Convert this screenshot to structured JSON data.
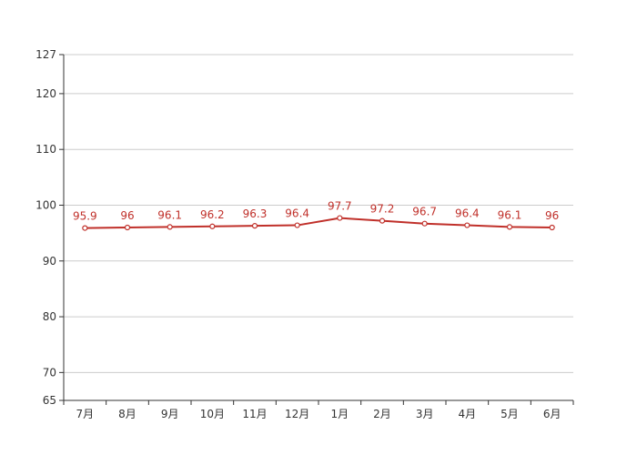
{
  "chart_data": {
    "type": "line",
    "title": "",
    "xlabel": "",
    "ylabel": "",
    "categories": [
      "7月",
      "8月",
      "9月",
      "10月",
      "11月",
      "12月",
      "1月",
      "2月",
      "3月",
      "4月",
      "5月",
      "6月"
    ],
    "series": [
      {
        "values": [
          95.9,
          96,
          96.1,
          96.2,
          96.3,
          96.4,
          97.7,
          97.2,
          96.7,
          96.4,
          96.1,
          96
        ]
      }
    ],
    "y_ticks": [
      65,
      70,
      80,
      90,
      100,
      110,
      120,
      127
    ],
    "ylim": [
      65,
      127
    ],
    "grid": true,
    "legend": "none",
    "colors": {
      "line": "#c0302a",
      "grid": "#cccccc",
      "axis": "#333333",
      "label": "#c0302a"
    }
  }
}
